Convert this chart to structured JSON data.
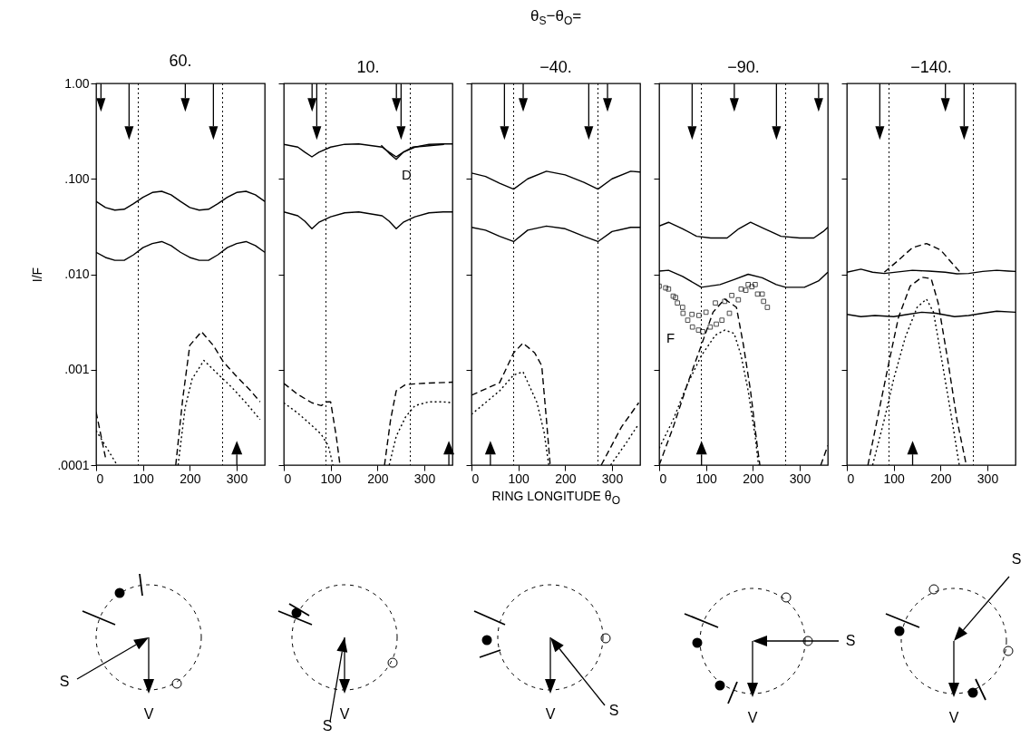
{
  "chart_data": [
    {
      "type": "line",
      "title": "60.",
      "ylabel": "I/F",
      "log": true,
      "xlim": [
        0,
        360
      ],
      "xticks": [
        0,
        100,
        200,
        300
      ],
      "ylim": [
        0.0001,
        1
      ],
      "yticks": [
        {
          "value": 0.0001,
          "label": ".0001"
        },
        {
          "value": 0.001,
          "label": ".001"
        },
        {
          "value": 0.01,
          "label": ".010"
        },
        {
          "value": 0.1,
          "label": ".100"
        },
        {
          "value": 1,
          "label": "1.00"
        }
      ],
      "ref_lines": [
        {
          "axis": "x",
          "value": 90,
          "line_style": "dotted"
        },
        {
          "axis": "x",
          "value": 270,
          "line_style": "dotted"
        }
      ],
      "annotations": [
        "S",
        "V"
      ],
      "series": [
        {
          "color": "#000000",
          "line_style": "solid",
          "x": [
            0,
            20,
            40,
            60,
            80,
            100,
            120,
            140,
            160,
            180,
            200,
            220,
            240,
            260,
            280,
            300,
            320,
            340,
            360
          ],
          "values": [
            0.058,
            0.05,
            0.047,
            0.048,
            0.055,
            0.064,
            0.072,
            0.074,
            0.068,
            0.058,
            0.05,
            0.047,
            0.048,
            0.055,
            0.064,
            0.072,
            0.074,
            0.068,
            0.058
          ]
        },
        {
          "color": "#000000",
          "line_style": "solid",
          "x": [
            0,
            20,
            40,
            60,
            80,
            100,
            120,
            140,
            160,
            180,
            200,
            220,
            240,
            260,
            280,
            300,
            320,
            340,
            360
          ],
          "values": [
            0.017,
            0.015,
            0.014,
            0.014,
            0.016,
            0.019,
            0.021,
            0.022,
            0.02,
            0.017,
            0.015,
            0.014,
            0.014,
            0.016,
            0.019,
            0.021,
            0.022,
            0.02,
            0.017
          ]
        },
        {
          "color": "#000000",
          "line_style": "dashed",
          "x": [
            0,
            20,
            100,
            170,
            185,
            200,
            225,
            250,
            272,
            300,
            330,
            350
          ],
          "values": [
            0.00036,
            0.00012,
            null,
            0.0001,
            0.0005,
            0.0018,
            0.0025,
            0.0018,
            0.0012,
            0.00085,
            0.0006,
            0.00046
          ]
        },
        {
          "color": "#000000",
          "line_style": "dotted",
          "x": [
            0,
            45,
            100,
            175,
            190,
            205,
            230,
            260,
            290,
            320,
            350
          ],
          "values": [
            0.00023,
            0.0001,
            null,
            0.0001,
            0.0004,
            0.0008,
            0.00125,
            0.0009,
            0.00065,
            0.00045,
            0.0003
          ]
        }
      ]
    },
    {
      "type": "line",
      "title": "10.",
      "log": true,
      "tick_labels": "x",
      "xlim": [
        0,
        360
      ],
      "xticks": [
        0,
        100,
        200,
        300
      ],
      "ylim": [
        0.0001,
        1
      ],
      "yticks": [
        0.0001,
        0.001,
        0.01,
        0.1,
        1
      ],
      "ref_lines": [
        {
          "axis": "x",
          "value": 90,
          "line_style": "dotted"
        },
        {
          "axis": "x",
          "value": 270,
          "line_style": "dotted"
        }
      ],
      "annotations": [
        "S",
        "V",
        {
          "text": "D",
          "x": 262,
          "y": 0.11
        }
      ],
      "series": [
        {
          "color": "#000000",
          "line_style": "solid",
          "x": [
            0,
            30,
            45,
            60,
            75,
            100,
            130,
            160,
            210,
            225,
            240,
            255,
            280,
            310,
            340,
            360
          ],
          "values": [
            0.23,
            0.215,
            0.19,
            0.17,
            0.19,
            0.215,
            0.23,
            0.232,
            0.215,
            0.19,
            0.17,
            0.19,
            0.215,
            0.23,
            0.232,
            0.232
          ]
        },
        {
          "color": "#000000",
          "line_style": "solid",
          "x": [
            0,
            30,
            45,
            60,
            75,
            100,
            130,
            160,
            210,
            225,
            240,
            255,
            280,
            310,
            340,
            360
          ],
          "values": [
            0.045,
            0.041,
            0.036,
            0.03,
            0.035,
            0.04,
            0.044,
            0.045,
            0.041,
            0.036,
            0.03,
            0.035,
            0.04,
            0.044,
            0.045,
            0.045
          ]
        },
        {
          "color": "#000000",
          "line_style": "solid",
          "x": [
            208,
            225,
            240,
            255,
            275,
            300,
            320,
            342
          ],
          "values": [
            0.225,
            0.185,
            0.16,
            0.19,
            0.215,
            0.22,
            0.225,
            0.23
          ]
        },
        {
          "color": "#000000",
          "line_style": "dashed",
          "x": [
            0,
            30,
            60,
            80,
            92,
            100,
            112,
            120,
            170,
            215,
            228,
            240,
            260,
            300,
            360
          ],
          "values": [
            0.00072,
            0.00055,
            0.00045,
            0.00042,
            0.00046,
            0.00046,
            0.0002,
            0.0001,
            null,
            0.0001,
            0.0003,
            0.0006,
            0.0007,
            0.00072,
            0.00074
          ]
        },
        {
          "color": "#000000",
          "line_style": "dotted",
          "x": [
            0,
            30,
            60,
            80,
            95,
            105,
            160,
            225,
            240,
            260,
            280,
            310,
            340,
            360
          ],
          "values": [
            0.00045,
            0.00035,
            0.00026,
            0.00021,
            0.00016,
            0.0001,
            null,
            0.0001,
            0.0002,
            0.00032,
            0.00042,
            0.00046,
            0.00046,
            0.00045
          ]
        }
      ]
    },
    {
      "type": "line",
      "title": "θ$_{S}$−θ$_{O}$=",
      "subtitle": "−40.",
      "xlabel": "RING LONGITUDE θ$_{O}$",
      "log": true,
      "tick_labels": "x",
      "xlim": [
        0,
        360
      ],
      "xticks": [
        0,
        100,
        200,
        300
      ],
      "ylim": [
        0.0001,
        1
      ],
      "yticks": [
        0.0001,
        0.001,
        0.01,
        0.1,
        1
      ],
      "ref_lines": [
        {
          "axis": "x",
          "value": 90,
          "line_style": "dotted"
        },
        {
          "axis": "x",
          "value": 270,
          "line_style": "dotted"
        }
      ],
      "annotations": [
        "S",
        "V"
      ],
      "series": [
        {
          "color": "#000000",
          "line_style": "solid",
          "x": [
            0,
            30,
            60,
            90,
            120,
            160,
            200,
            240,
            270,
            300,
            340,
            360
          ],
          "values": [
            0.115,
            0.106,
            0.09,
            0.078,
            0.1,
            0.12,
            0.11,
            0.092,
            0.078,
            0.1,
            0.12,
            0.118
          ]
        },
        {
          "color": "#000000",
          "line_style": "solid",
          "x": [
            0,
            30,
            60,
            90,
            120,
            160,
            200,
            240,
            270,
            300,
            340,
            360
          ],
          "values": [
            0.031,
            0.029,
            0.025,
            0.022,
            0.029,
            0.032,
            0.03,
            0.025,
            0.022,
            0.028,
            0.031,
            0.031
          ]
        },
        {
          "color": "#000000",
          "line_style": "dashed",
          "x": [
            0,
            60,
            90,
            110,
            135,
            150,
            160,
            168,
            220,
            277,
            320,
            357
          ],
          "values": [
            0.00054,
            0.00073,
            0.0015,
            0.0019,
            0.0015,
            0.0011,
            0.0003,
            0.0001,
            null,
            0.0001,
            0.00025,
            0.00045
          ]
        },
        {
          "color": "#000000",
          "line_style": "dotted",
          "x": [
            0,
            60,
            90,
            110,
            140,
            155,
            165,
            230,
            297,
            330,
            357
          ],
          "values": [
            0.00034,
            0.0006,
            0.00088,
            0.00095,
            0.00045,
            0.00022,
            0.0001,
            null,
            0.0001,
            0.00017,
            0.00027
          ]
        }
      ]
    },
    {
      "type": "line",
      "title": "−90.",
      "log": true,
      "tick_labels": "x",
      "xlim": [
        0,
        360
      ],
      "xticks": [
        0,
        100,
        200,
        300
      ],
      "ylim": [
        0.0001,
        1
      ],
      "yticks": [
        0.0001,
        0.001,
        0.01,
        0.1,
        1
      ],
      "ref_lines": [
        {
          "axis": "x",
          "value": 90,
          "line_style": "dotted"
        },
        {
          "axis": "x",
          "value": 270,
          "line_style": "dotted"
        }
      ],
      "annotations": [
        "S",
        "V",
        "F"
      ],
      "series": [
        {
          "color": "#000000",
          "line_style": "solid",
          "x": [
            0,
            20,
            50,
            80,
            110,
            145,
            170,
            195,
            225,
            260,
            300,
            330,
            350,
            360
          ],
          "values": [
            0.032,
            0.035,
            0.03,
            0.025,
            0.024,
            0.024,
            0.03,
            0.035,
            0.03,
            0.025,
            0.024,
            0.024,
            0.028,
            0.031
          ]
        },
        {
          "color": "#000000",
          "line_style": "solid",
          "x": [
            0,
            20,
            50,
            90,
            130,
            160,
            190,
            220,
            250,
            270,
            310,
            340,
            360
          ],
          "values": [
            0.0108,
            0.011,
            0.0095,
            0.0073,
            0.0078,
            0.0088,
            0.01,
            0.0092,
            0.0078,
            0.0073,
            0.0073,
            0.0085,
            0.0105
          ]
        },
        {
          "type": "scatter",
          "marker": "square",
          "color": "#000000",
          "x": [
            0,
            20,
            35,
            50,
            70,
            85,
            100,
            120,
            140,
            155,
            175,
            190,
            205,
            220
          ],
          "values": [
            0.0075,
            0.007,
            0.0057,
            0.0045,
            0.0038,
            0.0037,
            0.004,
            0.005,
            0.0052,
            0.006,
            0.007,
            0.0078,
            0.0078,
            0.0062
          ]
        },
        {
          "type": "scatter",
          "marker": "square",
          "color": "#000000",
          "x": [
            14,
            30,
            39,
            51,
            61,
            71,
            84,
            93,
            109,
            122,
            134,
            150,
            169,
            185,
            198,
            210,
            223,
            231
          ],
          "values": [
            0.0072,
            0.0059,
            0.005,
            0.0039,
            0.0033,
            0.0028,
            0.0026,
            0.0025,
            0.0028,
            0.003,
            0.0033,
            0.0039,
            0.0054,
            0.0068,
            0.0074,
            0.0062,
            0.0052,
            0.0045
          ]
        },
        {
          "color": "#000000",
          "line_style": "dashed",
          "x": [
            0,
            30,
            60,
            90,
            115,
            140,
            165,
            180,
            195,
            210,
            215,
            280,
            345,
            360
          ],
          "values": [
            0.0001,
            0.00025,
            0.0007,
            0.0018,
            0.004,
            0.0055,
            0.0045,
            0.0018,
            0.0006,
            0.00015,
            0.0001,
            null,
            0.0001,
            0.00016
          ]
        },
        {
          "color": "#000000",
          "line_style": "dotted",
          "x": [
            0,
            30,
            60,
            90,
            120,
            140,
            160,
            175,
            190,
            205,
            212
          ],
          "values": [
            0.00015,
            0.0003,
            0.0007,
            0.0014,
            0.0023,
            0.0026,
            0.0024,
            0.0014,
            0.0006,
            0.0002,
            0.0001
          ]
        }
      ]
    },
    {
      "type": "line",
      "title": "−140.",
      "log": true,
      "tick_labels": "x",
      "xlim": [
        0,
        360
      ],
      "xticks": [
        0,
        100,
        200,
        300
      ],
      "ylim": [
        0.0001,
        1
      ],
      "yticks": [
        0.0001,
        0.001,
        0.01,
        0.1,
        1
      ],
      "ref_lines": [
        {
          "axis": "x",
          "value": 90,
          "line_style": "dotted"
        },
        {
          "axis": "x",
          "value": 270,
          "line_style": "dotted"
        }
      ],
      "annotations": [
        "S",
        "V"
      ],
      "series": [
        {
          "color": "#000000",
          "line_style": "solid",
          "x": [
            0,
            30,
            55,
            80,
            110,
            140,
            175,
            210,
            235,
            260,
            290,
            320,
            345,
            360
          ],
          "values": [
            0.0105,
            0.0113,
            0.0105,
            0.0102,
            0.0106,
            0.011,
            0.0108,
            0.0105,
            0.0101,
            0.0102,
            0.0107,
            0.011,
            0.0108,
            0.0107
          ]
        },
        {
          "color": "#000000",
          "line_style": "solid",
          "x": [
            0,
            30,
            60,
            100,
            130,
            160,
            190,
            230,
            260,
            290,
            320,
            360
          ],
          "values": [
            0.0038,
            0.0036,
            0.0037,
            0.0036,
            0.0038,
            0.004,
            0.0039,
            0.0036,
            0.0037,
            0.0039,
            0.0041,
            0.004
          ]
        },
        {
          "color": "#000000",
          "line_style": "dashed",
          "x": [
            80,
            110,
            140,
            170,
            200,
            225,
            242
          ],
          "values": [
            0.0105,
            0.014,
            0.019,
            0.021,
            0.018,
            0.013,
            0.0105
          ]
        },
        {
          "color": "#000000",
          "line_style": "dashed",
          "x": [
            45,
            70,
            90,
            110,
            135,
            160,
            180,
            195,
            215,
            235,
            255
          ],
          "values": [
            0.0001,
            0.0004,
            0.0012,
            0.0035,
            0.0075,
            0.0093,
            0.009,
            0.005,
            0.0013,
            0.0003,
            0.0001
          ]
        },
        {
          "color": "#000000",
          "line_style": "dotted",
          "x": [
            55,
            80,
            100,
            125,
            150,
            170,
            185,
            200,
            220,
            240
          ],
          "values": [
            0.0001,
            0.0003,
            0.0008,
            0.0022,
            0.0045,
            0.0055,
            0.004,
            0.0015,
            0.0004,
            0.0001
          ]
        }
      ]
    }
  ]
}
